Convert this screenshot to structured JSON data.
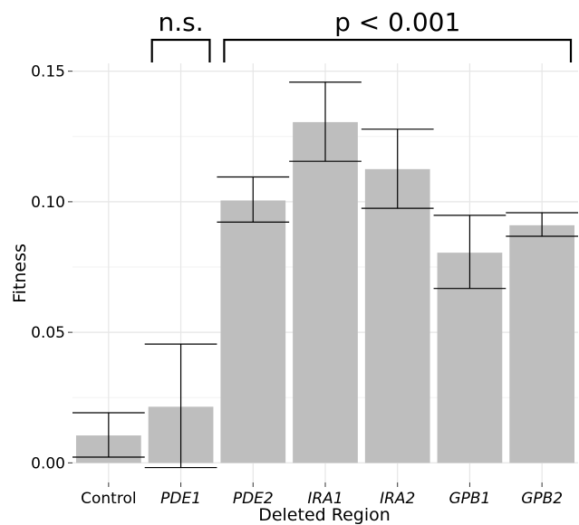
{
  "chart_data": {
    "type": "bar",
    "title": "",
    "xlabel": "Deleted Region",
    "ylabel": "Fitness",
    "ylim": [
      -0.0075,
      0.153
    ],
    "yticks": [
      0.0,
      0.05,
      0.1,
      0.15
    ],
    "ytick_labels": [
      "0.00",
      "0.05",
      "0.10",
      "0.15"
    ],
    "grid": true,
    "legend": "none",
    "bar_color": "#bebebe",
    "error_color": "#000000",
    "categories": [
      "Control",
      "PDE1",
      "PDE2",
      "IRA1",
      "IRA2",
      "GPB1",
      "GPB2"
    ],
    "italic_categories": [
      "PDE1",
      "PDE2",
      "IRA1",
      "IRA2",
      "GPB1",
      "GPB2"
    ],
    "values": [
      0.0105,
      0.0215,
      0.1005,
      0.1305,
      0.1125,
      0.0805,
      0.091
    ],
    "error_low": [
      0.0022,
      -0.0018,
      0.0922,
      0.1155,
      0.0975,
      0.0668,
      0.0868
    ],
    "error_high": [
      0.0192,
      0.0455,
      0.1095,
      0.1458,
      0.1278,
      0.0948,
      0.0958
    ],
    "annotations": [
      {
        "label": "n.s.",
        "from": "PDE1",
        "to": "PDE1"
      },
      {
        "label": "p < 0.001",
        "from": "PDE2",
        "to": "GPB2"
      }
    ]
  }
}
